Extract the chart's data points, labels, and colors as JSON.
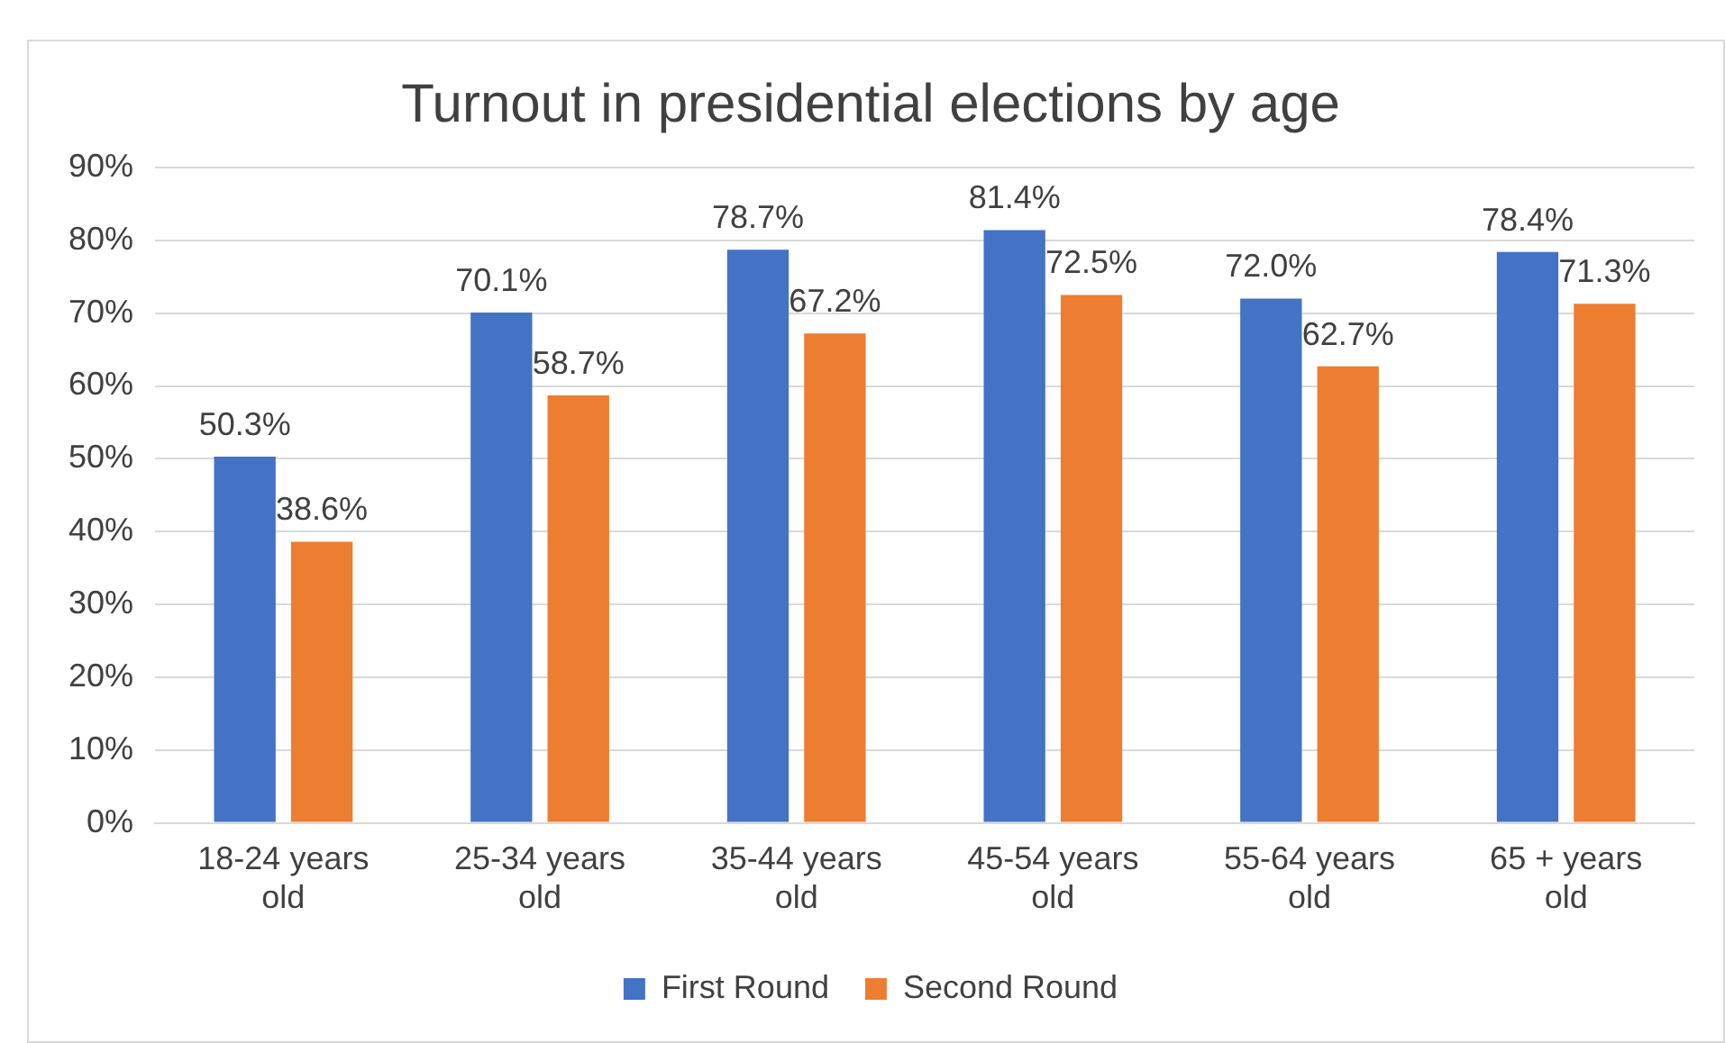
{
  "chart_data": {
    "type": "bar",
    "title": "Turnout in presidential elections by age",
    "categories": [
      "18-24 years old",
      "25-34 years old",
      "35-44 years old",
      "45-54 years old",
      "55-64 years old",
      "65 + years old"
    ],
    "series": [
      {
        "name": "First Round",
        "color": "#4472c4",
        "values": [
          50.3,
          70.1,
          78.7,
          81.4,
          72.0,
          78.4
        ],
        "value_labels": [
          "50.3%",
          "70.1%",
          "78.7%",
          "81.4%",
          "72.0%",
          "78.4%"
        ]
      },
      {
        "name": "Second Round",
        "color": "#ed7d31",
        "values": [
          38.6,
          58.7,
          67.2,
          72.5,
          62.7,
          71.3
        ],
        "value_labels": [
          "38.6%",
          "58.7%",
          "67.2%",
          "72.5%",
          "62.7%",
          "71.3%"
        ]
      }
    ],
    "ylim": [
      0,
      90
    ],
    "yticks": [
      {
        "value": 0,
        "label": "0%"
      },
      {
        "value": 10,
        "label": "10%"
      },
      {
        "value": 20,
        "label": "20%"
      },
      {
        "value": 30,
        "label": "30%"
      },
      {
        "value": 40,
        "label": "40%"
      },
      {
        "value": 50,
        "label": "50%"
      },
      {
        "value": 60,
        "label": "60%"
      },
      {
        "value": 70,
        "label": "70%"
      },
      {
        "value": 80,
        "label": "80%"
      },
      {
        "value": 90,
        "label": "90%"
      }
    ],
    "grid": "y",
    "legend": "bottom"
  }
}
